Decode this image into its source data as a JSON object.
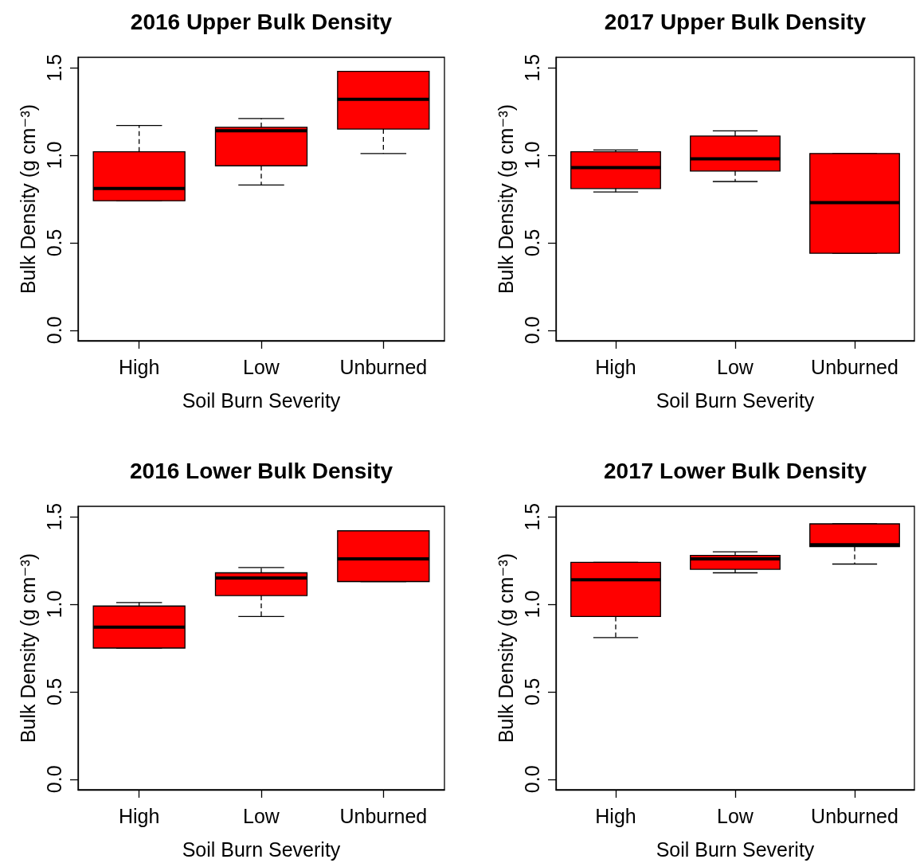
{
  "chart_data": [
    {
      "type": "box",
      "title": "2016 Upper Bulk Density",
      "xlabel": "Soil Burn Severity",
      "ylabel": "Bulk Density (g cm⁻³)",
      "categories": [
        "High",
        "Low",
        "Unburned"
      ],
      "color": "#ff0000",
      "boxes": [
        {
          "low": 0.74,
          "q1": 0.74,
          "median": 0.81,
          "q3": 1.02,
          "high": 1.17
        },
        {
          "low": 0.83,
          "q1": 0.94,
          "median": 1.14,
          "q3": 1.16,
          "high": 1.21
        },
        {
          "low": 1.01,
          "q1": 1.15,
          "median": 1.32,
          "q3": 1.48,
          "high": 1.48
        }
      ],
      "ylim": [
        -0.06,
        1.56
      ],
      "yticks": [
        {
          "value": 0,
          "label": "0.0"
        },
        {
          "value": 0.5,
          "label": "0.5"
        },
        {
          "value": 1,
          "label": "1.0"
        },
        {
          "value": 1.5,
          "label": "1.5"
        }
      ]
    },
    {
      "type": "box",
      "title": "2017 Upper Bulk Density",
      "xlabel": "Soil Burn Severity",
      "ylabel": "Bulk Density (g cm⁻³)",
      "categories": [
        "High",
        "Low",
        "Unburned"
      ],
      "color": "#ff0000",
      "boxes": [
        {
          "low": 0.79,
          "q1": 0.81,
          "median": 0.93,
          "q3": 1.02,
          "high": 1.03
        },
        {
          "low": 0.85,
          "q1": 0.91,
          "median": 0.98,
          "q3": 1.11,
          "high": 1.14
        },
        {
          "low": 0.44,
          "q1": 0.44,
          "median": 0.73,
          "q3": 1.01,
          "high": 1.01
        }
      ],
      "ylim": [
        -0.06,
        1.56
      ],
      "yticks": [
        {
          "value": 0,
          "label": "0.0"
        },
        {
          "value": 0.5,
          "label": "0.5"
        },
        {
          "value": 1,
          "label": "1.0"
        },
        {
          "value": 1.5,
          "label": "1.5"
        }
      ]
    },
    {
      "type": "box",
      "title": "2016 Lower Bulk Density",
      "xlabel": "Soil Burn Severity",
      "ylabel": "Bulk Density (g cm⁻³)",
      "categories": [
        "High",
        "Low",
        "Unburned"
      ],
      "color": "#ff0000",
      "boxes": [
        {
          "low": 0.75,
          "q1": 0.75,
          "median": 0.87,
          "q3": 0.99,
          "high": 1.01
        },
        {
          "low": 0.93,
          "q1": 1.05,
          "median": 1.15,
          "q3": 1.18,
          "high": 1.21
        },
        {
          "low": 1.13,
          "q1": 1.13,
          "median": 1.26,
          "q3": 1.42,
          "high": 1.42
        }
      ],
      "ylim": [
        -0.06,
        1.56
      ],
      "yticks": [
        {
          "value": 0,
          "label": "0.0"
        },
        {
          "value": 0.5,
          "label": "0.5"
        },
        {
          "value": 1,
          "label": "1.0"
        },
        {
          "value": 1.5,
          "label": "1.5"
        }
      ]
    },
    {
      "type": "box",
      "title": "2017 Lower Bulk Density",
      "xlabel": "Soil Burn Severity",
      "ylabel": "Bulk Density (g cm⁻³)",
      "categories": [
        "High",
        "Low",
        "Unburned"
      ],
      "color": "#ff0000",
      "boxes": [
        {
          "low": 0.81,
          "q1": 0.93,
          "median": 1.14,
          "q3": 1.24,
          "high": 1.24
        },
        {
          "low": 1.18,
          "q1": 1.2,
          "median": 1.26,
          "q3": 1.28,
          "high": 1.3
        },
        {
          "low": 1.23,
          "q1": 1.33,
          "median": 1.34,
          "q3": 1.46,
          "high": 1.46
        }
      ],
      "ylim": [
        -0.06,
        1.56
      ],
      "yticks": [
        {
          "value": 0,
          "label": "0.0"
        },
        {
          "value": 0.5,
          "label": "0.5"
        },
        {
          "value": 1,
          "label": "1.0"
        },
        {
          "value": 1.5,
          "label": "1.5"
        }
      ]
    }
  ]
}
